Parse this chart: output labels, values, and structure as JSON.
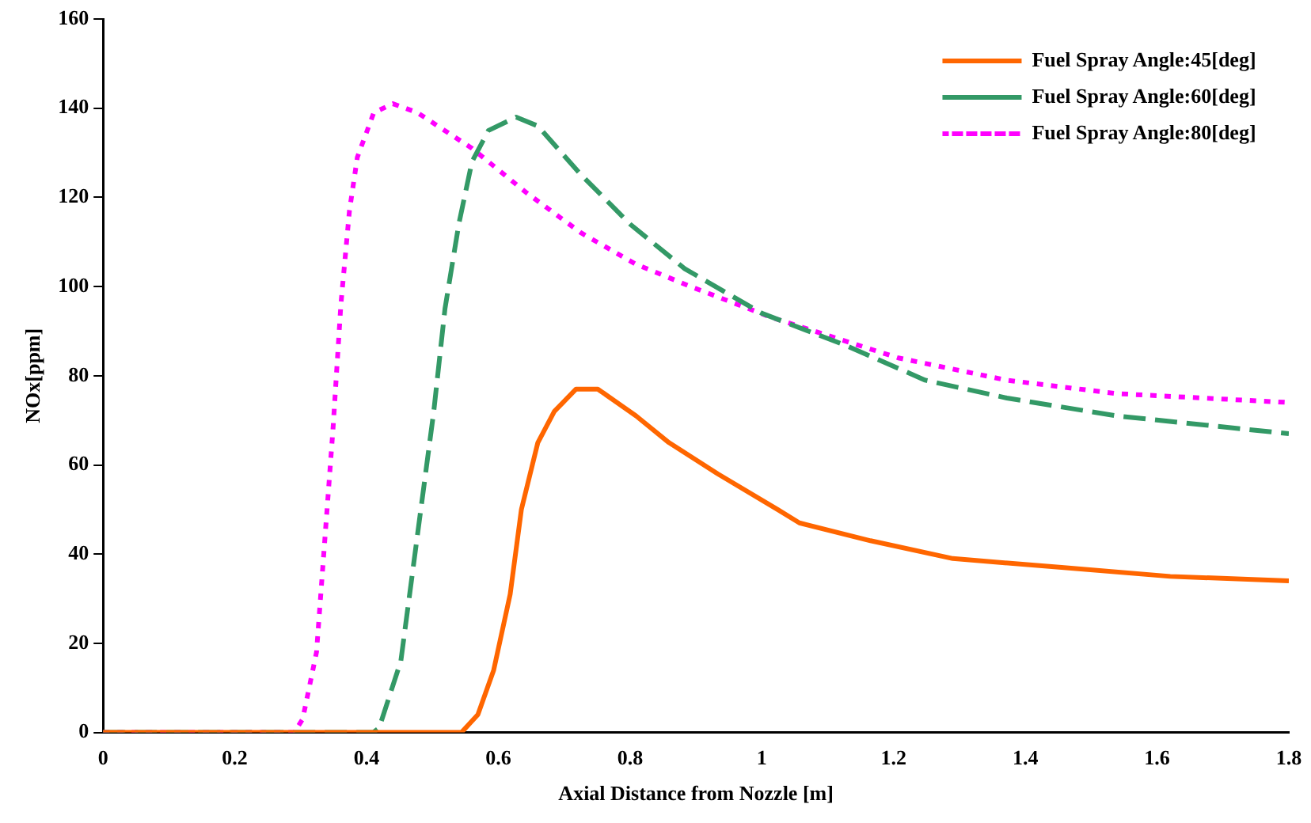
{
  "chart_data": {
    "type": "line",
    "xlabel": "Axial Distance from Nozzle [m]",
    "ylabel": "NOx[ppm]",
    "xlim": [
      0,
      1.8
    ],
    "xticks": [
      0,
      0.2,
      0.4,
      0.6,
      0.8,
      1,
      1.2,
      1.4,
      1.6,
      1.8
    ],
    "ylim": [
      0,
      160
    ],
    "yticks": [
      0,
      20,
      40,
      60,
      80,
      100,
      120,
      140,
      160
    ],
    "grid": false,
    "legend": "top right",
    "marker": "none",
    "series": [
      {
        "name": "Fuel Spray Angle:45[deg]",
        "color": "#ff6600",
        "line_style": "solid",
        "x": [
          0,
          0.544,
          0.569,
          0.593,
          0.618,
          0.635,
          0.66,
          0.685,
          0.718,
          0.751,
          0.809,
          0.859,
          0.933,
          1.024,
          1.057,
          1.165,
          1.29,
          1.455,
          1.62,
          1.8
        ],
        "values": [
          0,
          0,
          4,
          14,
          31,
          50,
          65,
          72,
          77,
          77,
          71,
          65,
          58,
          50,
          47,
          43,
          39,
          37,
          35,
          34
        ]
      },
      {
        "name": "Fuel Spray Angle:60[deg]",
        "color": "#339966",
        "line_style": "dashed",
        "x": [
          0,
          0.41,
          0.419,
          0.452,
          0.477,
          0.502,
          0.519,
          0.54,
          0.56,
          0.585,
          0.627,
          0.66,
          0.726,
          0.8,
          0.883,
          1.0,
          1.124,
          1.248,
          1.372,
          1.538,
          1.8
        ],
        "values": [
          0,
          0,
          1,
          16,
          44,
          72,
          95,
          114,
          128,
          135,
          138,
          136,
          125,
          114,
          104,
          94,
          87,
          79,
          75,
          71,
          67
        ]
      },
      {
        "name": "Fuel Spray Angle:80[deg]",
        "color": "#ff00ff",
        "line_style": "dotted",
        "x": [
          0,
          0.29,
          0.303,
          0.324,
          0.337,
          0.349,
          0.361,
          0.374,
          0.386,
          0.411,
          0.44,
          0.477,
          0.56,
          0.643,
          0.726,
          0.809,
          0.892,
          1.016,
          1.207,
          1.372,
          1.538,
          1.8
        ],
        "values": [
          0,
          0,
          3,
          18,
          44,
          68,
          96,
          117,
          129,
          139,
          141,
          139,
          131,
          121,
          112,
          105,
          100,
          93,
          84,
          79,
          76,
          74
        ]
      }
    ]
  }
}
